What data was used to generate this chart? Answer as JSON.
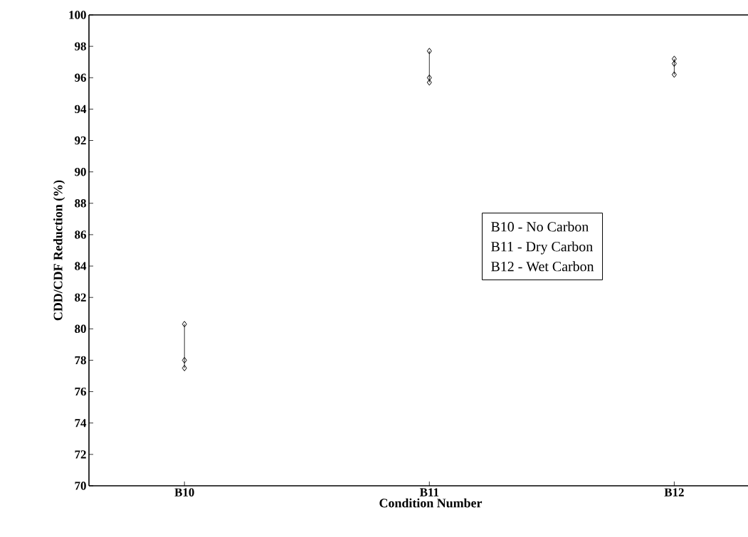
{
  "chart_data": {
    "type": "line",
    "xlabel": "Condition Number",
    "ylabel": "CDD/CDF Reduction (%)",
    "categories": [
      "B10",
      "B11",
      "B12"
    ],
    "series": [
      {
        "x": [
          "B10",
          "B10",
          "B10"
        ],
        "values": [
          80.3,
          78.0,
          77.5
        ],
        "color": "#000000"
      },
      {
        "x": [
          "B11",
          "B11",
          "B11"
        ],
        "values": [
          97.7,
          96.0,
          95.7
        ],
        "color": "#000000"
      },
      {
        "x": [
          "B12",
          "B12",
          "B12"
        ],
        "values": [
          97.2,
          96.9,
          96.2
        ],
        "color": "#000000"
      }
    ],
    "marker": "diamond",
    "line_style": "solid",
    "ylim": [
      70,
      100
    ],
    "yticks": [
      70,
      72,
      74,
      76,
      78,
      80,
      82,
      84,
      86,
      88,
      90,
      92,
      94,
      96,
      98,
      100
    ],
    "annotations": [
      "B10 - No Carbon",
      "B11 - Dry Carbon",
      "B12 - Wet Carbon"
    ]
  }
}
